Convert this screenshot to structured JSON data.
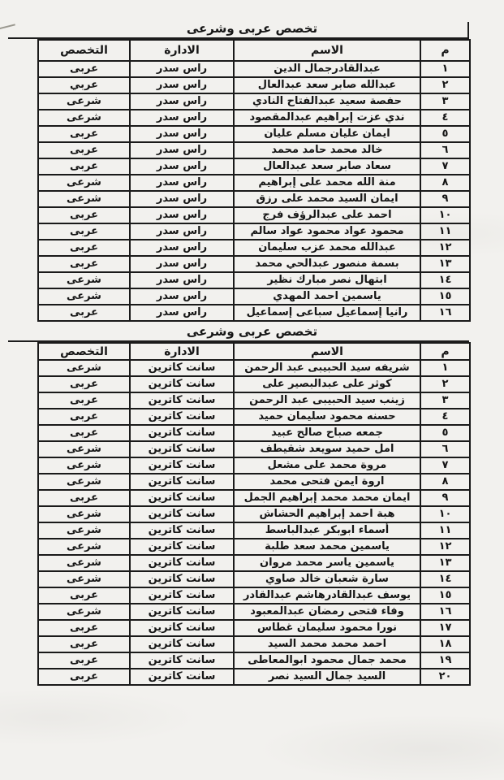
{
  "tables": [
    {
      "title": "تخصص عربى وشرعى",
      "headers": {
        "num": "م",
        "name": "الاسم",
        "admin": "الادارة",
        "specialty": "التخصص"
      },
      "rows": [
        {
          "num": "١",
          "name": "عبدالقادرجمال الدين",
          "admin": "راس سدر",
          "specialty": "عربى"
        },
        {
          "num": "٢",
          "name": "عبدالله صابر سعد عبدالعال",
          "admin": "راس سدر",
          "specialty": "عربي"
        },
        {
          "num": "٣",
          "name": "حفصة سعيد عبدالفتاح النادي",
          "admin": "راس سدر",
          "specialty": "شرعى"
        },
        {
          "num": "٤",
          "name": "ندي عزت إبراهيم عبدالمقصود",
          "admin": "راس سدر",
          "specialty": "شرعى"
        },
        {
          "num": "٥",
          "name": "ايمان عليان مسلم عليان",
          "admin": "راس سدر",
          "specialty": "عربى"
        },
        {
          "num": "٦",
          "name": "خالد محمد حامد محمد",
          "admin": "راس سدر",
          "specialty": "عربى"
        },
        {
          "num": "٧",
          "name": "سعاد صابر سعد عبدالعال",
          "admin": "راس سدر",
          "specialty": "عربى"
        },
        {
          "num": "٨",
          "name": "منة الله محمد على إبراهيم",
          "admin": "راس سدر",
          "specialty": "شرعى"
        },
        {
          "num": "٩",
          "name": "ايمان السيد محمد على رزق",
          "admin": "راس سدر",
          "specialty": "شرعى"
        },
        {
          "num": "١٠",
          "name": "احمد على عبدالرؤف فرج",
          "admin": "راس سدر",
          "specialty": "عربى"
        },
        {
          "num": "١١",
          "name": "محمود عواد محمود عواد سالم",
          "admin": "راس سدر",
          "specialty": "عربى"
        },
        {
          "num": "١٢",
          "name": "عبدالله محمد عزب سليمان",
          "admin": "راس سدر",
          "specialty": "عربى"
        },
        {
          "num": "١٣",
          "name": "بسمة منصور عبدالحي محمد",
          "admin": "راس سدر",
          "specialty": "عربى"
        },
        {
          "num": "١٤",
          "name": "ابتهال نصر مبارك نظير",
          "admin": "راس سدر",
          "specialty": "شرعى"
        },
        {
          "num": "١٥",
          "name": "ياسمين احمد المهدي",
          "admin": "راس سدر",
          "specialty": "شرعى"
        },
        {
          "num": "١٦",
          "name": "رانيا إسماعيل سباعى إسماعيل",
          "admin": "راس سدر",
          "specialty": "عربى"
        }
      ]
    },
    {
      "title": "تخصص عربى وشرعى",
      "headers": {
        "num": "م",
        "name": "الاسم",
        "admin": "الادارة",
        "specialty": "التخصص"
      },
      "rows": [
        {
          "num": "١",
          "name": "شريفه سيد الحبيبى عبد الرحمن",
          "admin": "سانت كاترين",
          "specialty": "شرعى"
        },
        {
          "num": "٢",
          "name": "كوثر على عبدالبصير على",
          "admin": "سانت كاترين",
          "specialty": "عربى"
        },
        {
          "num": "٣",
          "name": "زينب سيد الحبيبى عبد الرحمن",
          "admin": "سانت كاترين",
          "specialty": "عربى"
        },
        {
          "num": "٤",
          "name": "حسنه محمود سليمان حميد",
          "admin": "سانت كاترين",
          "specialty": "عربى"
        },
        {
          "num": "٥",
          "name": "جمعه صباح صالح عبيد",
          "admin": "سانت كاترين",
          "specialty": "عربى"
        },
        {
          "num": "٦",
          "name": "امل حميد سويعد شقيطف",
          "admin": "سانت كاترين",
          "specialty": "شرعى"
        },
        {
          "num": "٧",
          "name": "مروة محمد على مشعل",
          "admin": "سانت كاترين",
          "specialty": "شرعى"
        },
        {
          "num": "٨",
          "name": "اروة ايمن فتحى محمد",
          "admin": "سانت كاترين",
          "specialty": "شرعى"
        },
        {
          "num": "٩",
          "name": "ايمان محمد محمد إبراهيم الجمل",
          "admin": "سانت كاترين",
          "specialty": "عربى"
        },
        {
          "num": "١٠",
          "name": "هبة احمد إبراهيم الحشاش",
          "admin": "سانت كاترين",
          "specialty": "شرعى"
        },
        {
          "num": "١١",
          "name": "أسماء ابوبكر عبدالباسط",
          "admin": "سانت كاترين",
          "specialty": "شرعى"
        },
        {
          "num": "١٢",
          "name": "ياسمين محمد سعد طلبة",
          "admin": "سانت كاترين",
          "specialty": "شرعى"
        },
        {
          "num": "١٣",
          "name": "ياسمين ياسر محمد مروان",
          "admin": "سانت كاترين",
          "specialty": "شرعى"
        },
        {
          "num": "١٤",
          "name": "سارة شعبان خالد صاوي",
          "admin": "سانت كاترين",
          "specialty": "شرعى"
        },
        {
          "num": "١٥",
          "name": "يوسف عبدالقادرهاشم عبدالقادر",
          "admin": "سانت كاترين",
          "specialty": "عربى"
        },
        {
          "num": "١٦",
          "name": "وفاء فتحى رمضان عبدالمعبود",
          "admin": "سانت كاترين",
          "specialty": "شرعى"
        },
        {
          "num": "١٧",
          "name": "نورا محمود سليمان غطاس",
          "admin": "سانت كاترين",
          "specialty": "عربى"
        },
        {
          "num": "١٨",
          "name": "احمد محمد محمد السيد",
          "admin": "سانت كاترين",
          "specialty": "عربى"
        },
        {
          "num": "١٩",
          "name": "محمد جمال محمود ابوالمعاطى",
          "admin": "سانت كاترين",
          "specialty": "عربى"
        },
        {
          "num": "٢٠",
          "name": "السيد جمال السيد نصر",
          "admin": "سانت كاترين",
          "specialty": "عربى"
        }
      ]
    }
  ]
}
